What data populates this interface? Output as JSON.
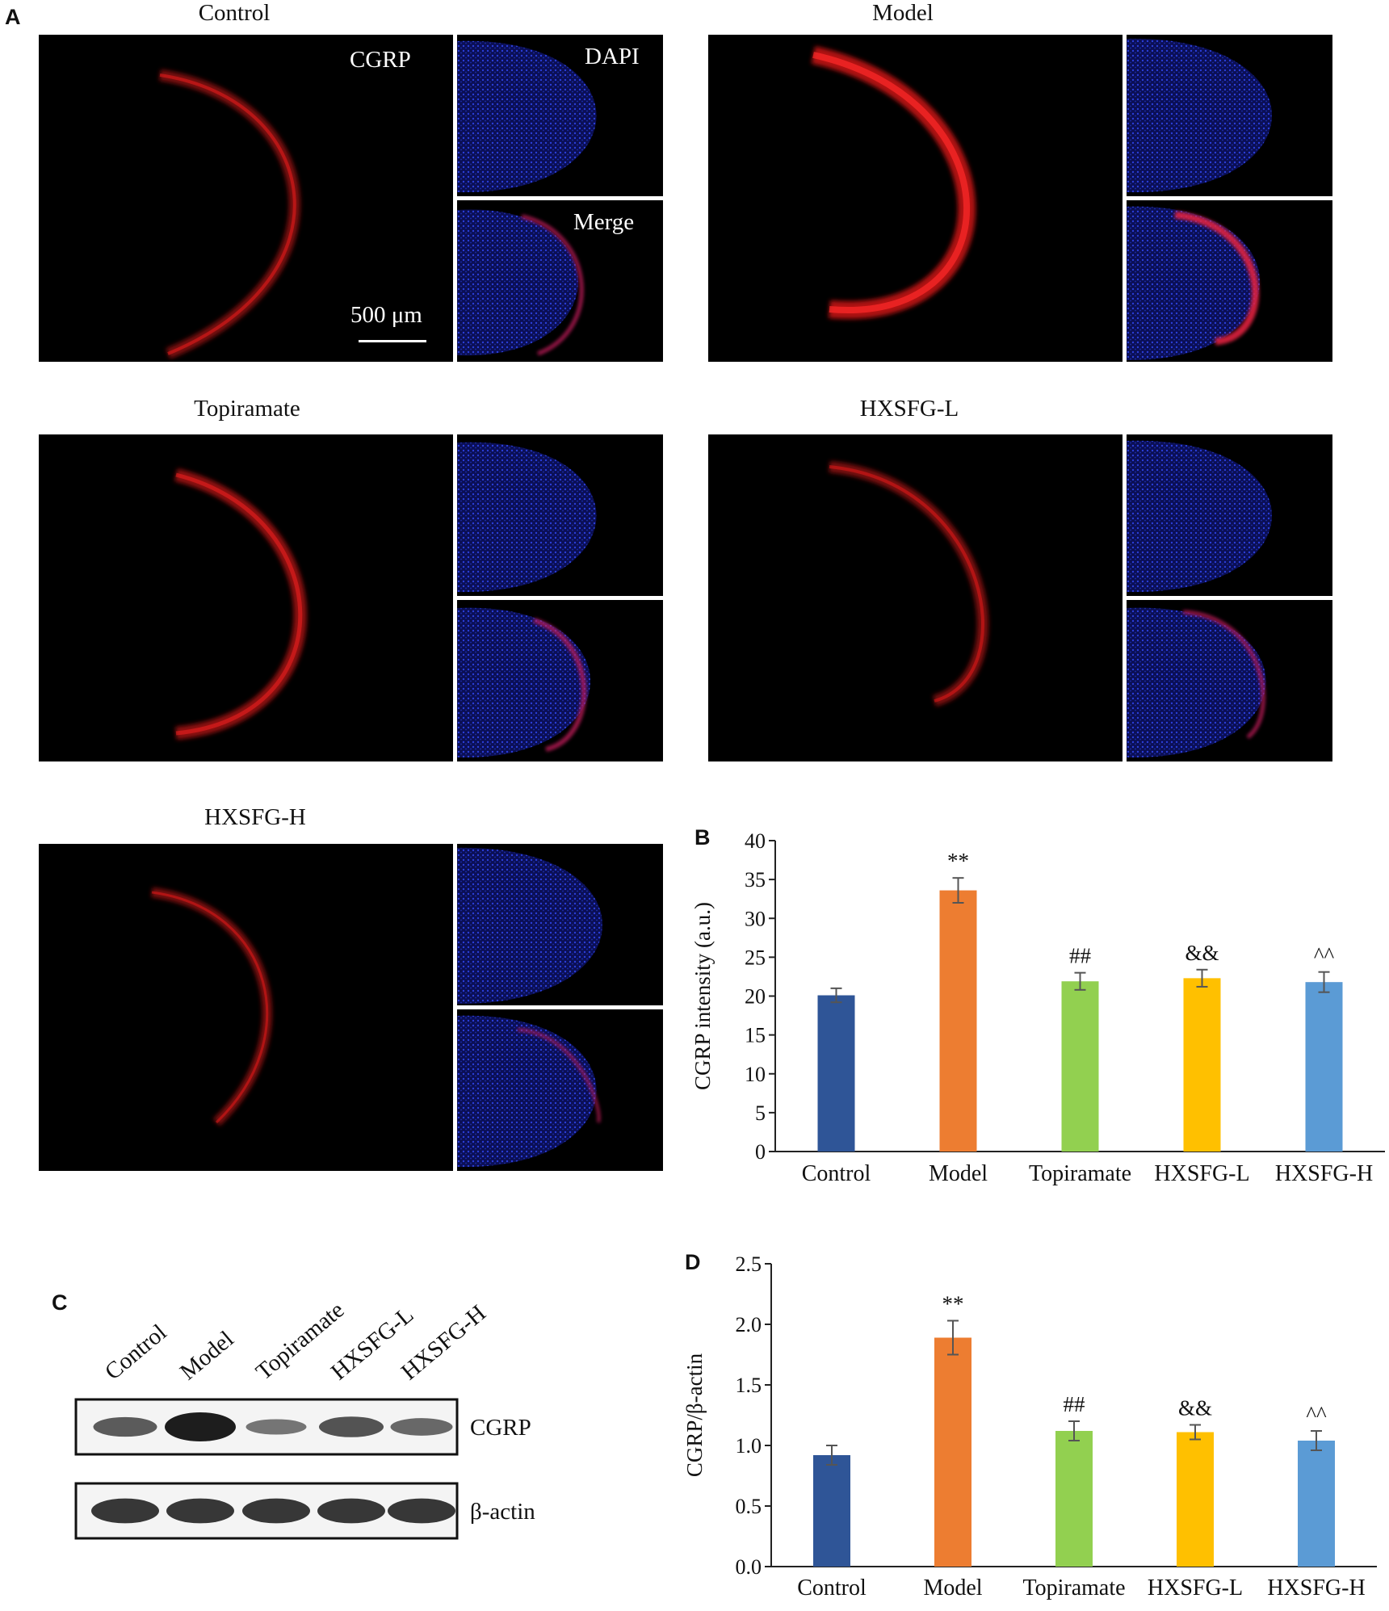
{
  "panel_labels": {
    "a": "A",
    "b": "B",
    "c": "C",
    "d": "D"
  },
  "micrographs": {
    "groups": [
      {
        "title": "Control"
      },
      {
        "title": "Model"
      },
      {
        "title": "Topiramate"
      },
      {
        "title": "HXSFG-L"
      },
      {
        "title": "HXSFG-H"
      }
    ],
    "channel_labels": {
      "cgrp": "CGRP",
      "dapi": "DAPI",
      "merge": "Merge"
    },
    "scale_bar": "500 μm",
    "colors": {
      "cgrp": "#e01a1a",
      "dapi": "#2a3ed8",
      "background": "#000000"
    }
  },
  "western_blot": {
    "lanes": [
      "Control",
      "Model",
      "Topiramate",
      "HXSFG-L",
      "HXSFG-H"
    ],
    "rows": [
      {
        "label": "CGRP",
        "intensities": [
          0.55,
          1.0,
          0.35,
          0.6,
          0.45
        ]
      },
      {
        "label": "β-actin",
        "intensities": [
          0.8,
          0.8,
          0.8,
          0.8,
          0.8
        ]
      }
    ]
  },
  "chart_data": [
    {
      "type": "bar",
      "panel": "B",
      "categories": [
        "Control",
        "Model",
        "Topiramate",
        "HXSFG-L",
        "HXSFG-H"
      ],
      "values": [
        20.1,
        33.6,
        21.9,
        22.3,
        21.8
      ],
      "errors": [
        0.9,
        1.6,
        1.1,
        1.1,
        1.3
      ],
      "annotations": [
        "",
        "**",
        "##",
        "&&",
        "^^"
      ],
      "colors": [
        "#2f5597",
        "#ed7d31",
        "#92d050",
        "#ffc000",
        "#5b9bd5"
      ],
      "ylabel": "CGRP intensity (a.u.)",
      "ylim": [
        0,
        40
      ],
      "yticks": [
        "0",
        "5",
        "10",
        "15",
        "20",
        "25",
        "30",
        "35",
        "40"
      ],
      "grid": false
    },
    {
      "type": "bar",
      "panel": "D",
      "categories": [
        "Control",
        "Model",
        "Topiramate",
        "HXSFG-L",
        "HXSFG-H"
      ],
      "values": [
        0.92,
        1.89,
        1.12,
        1.11,
        1.04
      ],
      "errors": [
        0.08,
        0.14,
        0.08,
        0.06,
        0.08
      ],
      "annotations": [
        "",
        "**",
        "##",
        "&&",
        "^^"
      ],
      "colors": [
        "#2f5597",
        "#ed7d31",
        "#92d050",
        "#ffc000",
        "#5b9bd5"
      ],
      "ylabel": "CGRP/β-actin",
      "ylim": [
        0,
        2.5
      ],
      "yticks": [
        "0.0",
        "0.5",
        "1.0",
        "1.5",
        "2.0",
        "2.5"
      ],
      "grid": false
    }
  ]
}
